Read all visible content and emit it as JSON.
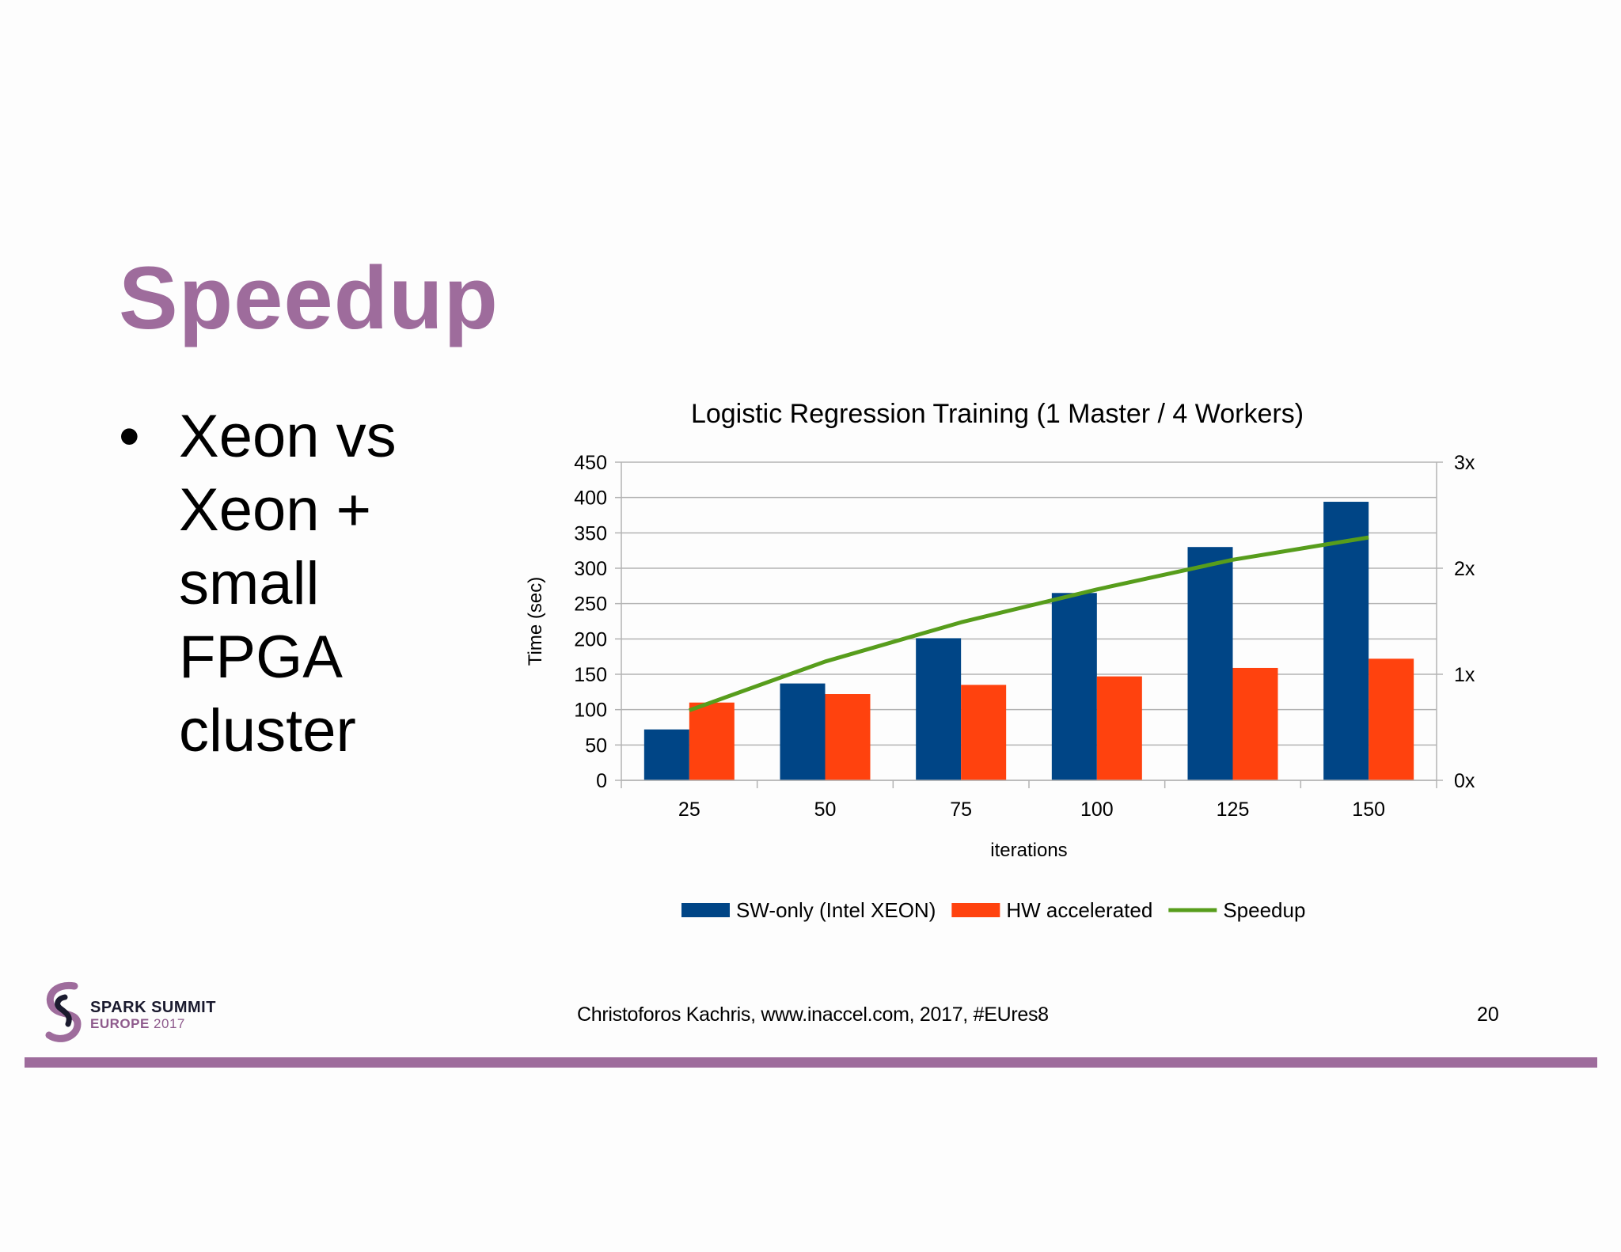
{
  "slide": {
    "title": "Speedup",
    "bullets": [
      "Xeon vs",
      "Xeon +",
      "small",
      "FPGA",
      "cluster"
    ],
    "accent_color": "#9e6c9c"
  },
  "footer": {
    "logo_line1": "SPARK SUMMIT",
    "logo_line2_bold": "EUROPE",
    "logo_line2_year": "2017",
    "credit": "Christoforos Kachris, www.inaccel.com, 2017, #EUres8",
    "page_number": "20"
  },
  "chart_data": {
    "type": "bar",
    "title": "Logistic Regression Training (1 Master / 4 Workers)",
    "xlabel": "iterations",
    "ylabel": "Time (sec)",
    "categories": [
      "25",
      "50",
      "75",
      "100",
      "125",
      "150"
    ],
    "ylim": [
      0,
      450
    ],
    "yticks": [
      0,
      50,
      100,
      150,
      200,
      250,
      300,
      350,
      400,
      450
    ],
    "y2lim": [
      0,
      3
    ],
    "y2ticks": [
      0,
      1,
      2,
      3
    ],
    "y2ticklabels": [
      "0x",
      "1x",
      "2x",
      "3x"
    ],
    "grid": true,
    "legend_position": "bottom",
    "series": [
      {
        "name": "SW-only (Intel XEON)",
        "type": "bar",
        "axis": "left",
        "color": "#004586",
        "values": [
          72,
          137,
          201,
          265,
          330,
          394
        ]
      },
      {
        "name": "HW accelerated",
        "type": "bar",
        "axis": "left",
        "color": "#ff420e",
        "values": [
          110,
          122,
          135,
          147,
          159,
          172
        ]
      },
      {
        "name": "Speedup",
        "type": "line",
        "axis": "right",
        "color": "#579d1c",
        "values": [
          0.66,
          1.12,
          1.49,
          1.8,
          2.08,
          2.29
        ]
      }
    ]
  }
}
